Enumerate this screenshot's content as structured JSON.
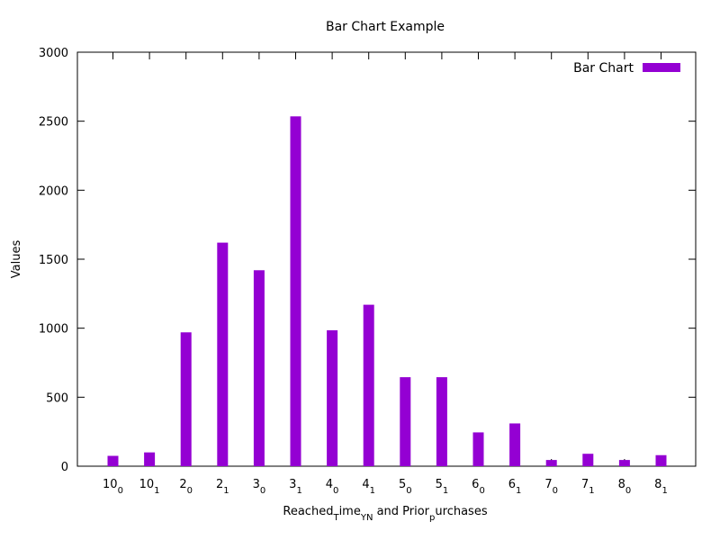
{
  "chart_data": {
    "type": "bar",
    "title": "Bar Chart Example",
    "xlabel": {
      "base": "Reached",
      "sub1": "T",
      "mid": "ime",
      "sub2": "YN",
      "tail": " and Prior",
      "sub3": "p",
      "end": "urchases"
    },
    "ylabel": "Values",
    "ylim": [
      0,
      3000
    ],
    "yticks": [
      "0",
      "500",
      "1000",
      "1500",
      "2000",
      "2500",
      "3000"
    ],
    "grid": false,
    "legend_position": "top-right",
    "categories": [
      {
        "base": "10",
        "sub": "0"
      },
      {
        "base": "10",
        "sub": "1"
      },
      {
        "base": "2",
        "sub": "0"
      },
      {
        "base": "2",
        "sub": "1"
      },
      {
        "base": "3",
        "sub": "0"
      },
      {
        "base": "3",
        "sub": "1"
      },
      {
        "base": "4",
        "sub": "0"
      },
      {
        "base": "4",
        "sub": "1"
      },
      {
        "base": "5",
        "sub": "0"
      },
      {
        "base": "5",
        "sub": "1"
      },
      {
        "base": "6",
        "sub": "0"
      },
      {
        "base": "6",
        "sub": "1"
      },
      {
        "base": "7",
        "sub": "0"
      },
      {
        "base": "7",
        "sub": "1"
      },
      {
        "base": "8",
        "sub": "0"
      },
      {
        "base": "8",
        "sub": "1"
      }
    ],
    "series": [
      {
        "name": "Bar Chart",
        "color": "#9400d3",
        "values": [
          75,
          100,
          970,
          1620,
          1420,
          2535,
          985,
          1170,
          645,
          645,
          245,
          310,
          45,
          90,
          45,
          80
        ]
      }
    ]
  }
}
